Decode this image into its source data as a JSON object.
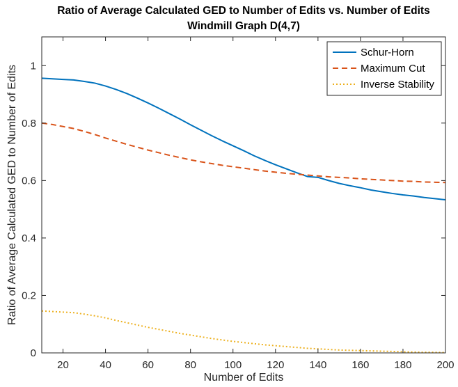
{
  "chart_data": {
    "type": "line",
    "title": "Ratio of Average Calculated GED to Number of Edits vs. Number of Edits",
    "subtitle": "Windmill Graph D(4,7)",
    "xlabel": "Number of Edits",
    "ylabel": "Ratio of Average Calculated GED to Number of Edits",
    "xlim": [
      10,
      200
    ],
    "ylim": [
      0,
      1.1
    ],
    "xticks": [
      20,
      40,
      60,
      80,
      100,
      120,
      140,
      160,
      180,
      200
    ],
    "yticks": [
      0,
      0.2,
      0.4,
      0.6,
      0.8,
      1
    ],
    "grid": false,
    "legend_position": "top-right",
    "x": [
      10,
      15,
      20,
      25,
      30,
      35,
      40,
      45,
      50,
      55,
      60,
      65,
      70,
      75,
      80,
      85,
      90,
      95,
      100,
      105,
      110,
      115,
      120,
      125,
      130,
      135,
      140,
      145,
      150,
      155,
      160,
      165,
      170,
      175,
      180,
      185,
      190,
      195,
      200
    ],
    "series": [
      {
        "name": "Schur-Horn",
        "color": "#0072BD",
        "dash": "solid",
        "values": [
          0.956,
          0.954,
          0.952,
          0.95,
          0.945,
          0.939,
          0.929,
          0.917,
          0.903,
          0.887,
          0.87,
          0.852,
          0.833,
          0.814,
          0.794,
          0.775,
          0.756,
          0.738,
          0.721,
          0.704,
          0.686,
          0.67,
          0.655,
          0.641,
          0.627,
          0.614,
          0.611,
          0.6,
          0.59,
          0.582,
          0.575,
          0.567,
          0.561,
          0.555,
          0.55,
          0.546,
          0.541,
          0.537,
          0.533
        ]
      },
      {
        "name": "Maximum Cut",
        "color": "#D95319",
        "dash": "dashed",
        "values": [
          0.8,
          0.795,
          0.788,
          0.781,
          0.771,
          0.76,
          0.748,
          0.737,
          0.726,
          0.716,
          0.706,
          0.697,
          0.688,
          0.68,
          0.672,
          0.665,
          0.659,
          0.653,
          0.648,
          0.643,
          0.638,
          0.633,
          0.629,
          0.625,
          0.622,
          0.619,
          0.616,
          0.613,
          0.611,
          0.609,
          0.606,
          0.604,
          0.602,
          0.6,
          0.598,
          0.597,
          0.595,
          0.594,
          0.593
        ]
      },
      {
        "name": "Inverse Stability",
        "color": "#EDB120",
        "dash": "dotted",
        "values": [
          0.146,
          0.144,
          0.142,
          0.14,
          0.135,
          0.129,
          0.122,
          0.113,
          0.105,
          0.097,
          0.089,
          0.082,
          0.075,
          0.068,
          0.062,
          0.056,
          0.05,
          0.045,
          0.04,
          0.036,
          0.032,
          0.028,
          0.025,
          0.022,
          0.019,
          0.016,
          0.014,
          0.012,
          0.01,
          0.009,
          0.008,
          0.007,
          0.006,
          0.005,
          0.004,
          0.003,
          0.002,
          0.002,
          0.001
        ]
      }
    ]
  }
}
